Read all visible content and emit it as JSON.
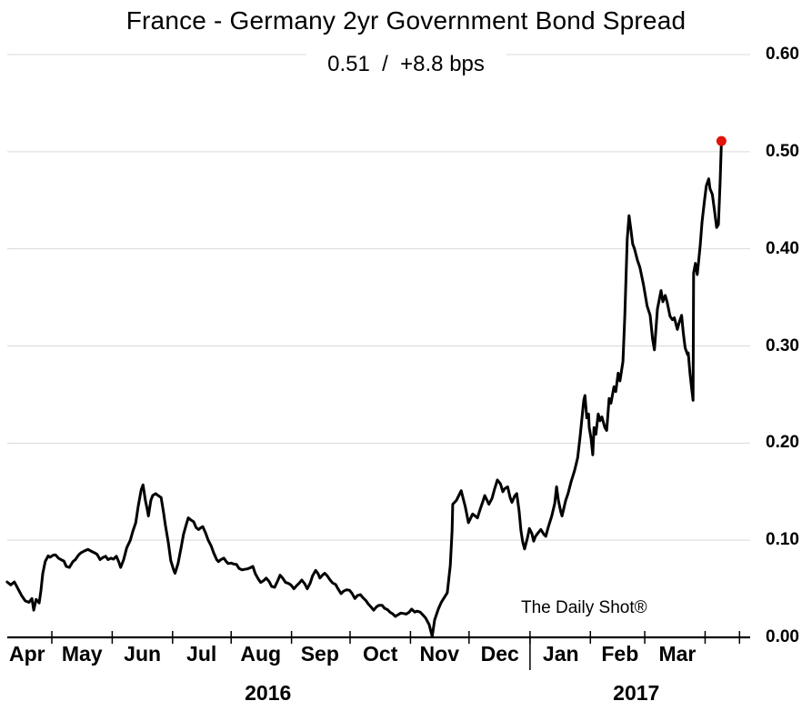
{
  "colors": {
    "background": "#ffffff",
    "gridline": "#d9d9d9",
    "axis": "#000000",
    "line": "#000000",
    "marker": "#e3120b",
    "text": "#000000"
  },
  "chart_data": {
    "type": "line",
    "title": "France - Germany 2yr Government Bond Spread",
    "subtitle": "0.51  /  +8.8 bps",
    "last_value": "0.51",
    "last_change": "+8.8 bps",
    "watermark": "The Daily Shot®",
    "x_axis": {
      "t_unit": "months since 2016-04-01 (t=1 is May 1, 2016 tick)",
      "range_t": [
        0.26,
        12.57
      ],
      "ticks_t": [
        1.0,
        2.0,
        3.0,
        3.97,
        4.97,
        5.94,
        6.94,
        7.91,
        8.92,
        9.92,
        10.82,
        11.82,
        12.39
      ],
      "month_labels": [
        {
          "label": "Apr",
          "t": 0.59
        },
        {
          "label": "May",
          "t": 1.5
        },
        {
          "label": "Jun",
          "t": 2.5
        },
        {
          "label": "Jul",
          "t": 3.48
        },
        {
          "label": "Aug",
          "t": 4.46
        },
        {
          "label": "Sep",
          "t": 5.44
        },
        {
          "label": "Oct",
          "t": 6.44
        },
        {
          "label": "Nov",
          "t": 7.42
        },
        {
          "label": "Dec",
          "t": 8.42
        },
        {
          "label": "Jan",
          "t": 9.43
        },
        {
          "label": "Feb",
          "t": 10.41
        },
        {
          "label": "Mar",
          "t": 11.36
        }
      ],
      "year_labels": [
        {
          "label": "2016",
          "t": 4.58
        },
        {
          "label": "2017",
          "t": 10.68
        }
      ],
      "year_separator_t": 8.92
    },
    "y_axis": {
      "min": 0,
      "max": 0.6,
      "tick_step": 0.1,
      "labels": [
        "0.00",
        "0.10",
        "0.20",
        "0.30",
        "0.40",
        "0.50",
        "0.60"
      ],
      "side": "right",
      "grid": true
    },
    "series": [
      {
        "name": "France - Germany 2yr spread",
        "color": "#000000",
        "points": [
          [
            0.26,
            0.057
          ],
          [
            0.32,
            0.054
          ],
          [
            0.38,
            0.057
          ],
          [
            0.44,
            0.05
          ],
          [
            0.5,
            0.043
          ],
          [
            0.56,
            0.0375
          ],
          [
            0.62,
            0.036
          ],
          [
            0.67,
            0.04
          ],
          [
            0.7,
            0.028
          ],
          [
            0.74,
            0.039
          ],
          [
            0.79,
            0.0355
          ],
          [
            0.82,
            0.048
          ],
          [
            0.85,
            0.0655
          ],
          [
            0.89,
            0.078
          ],
          [
            0.94,
            0.084
          ],
          [
            0.97,
            0.0825
          ],
          [
            1.02,
            0.0845
          ],
          [
            1.06,
            0.085
          ],
          [
            1.11,
            0.0815
          ],
          [
            1.15,
            0.08
          ],
          [
            1.2,
            0.0785
          ],
          [
            1.24,
            0.073
          ],
          [
            1.29,
            0.072
          ],
          [
            1.35,
            0.078
          ],
          [
            1.39,
            0.08
          ],
          [
            1.44,
            0.0845
          ],
          [
            1.48,
            0.087
          ],
          [
            1.54,
            0.089
          ],
          [
            1.6,
            0.0905
          ],
          [
            1.66,
            0.0885
          ],
          [
            1.71,
            0.087
          ],
          [
            1.75,
            0.0855
          ],
          [
            1.8,
            0.08
          ],
          [
            1.84,
            0.082
          ],
          [
            1.89,
            0.0835
          ],
          [
            1.93,
            0.08
          ],
          [
            1.98,
            0.0815
          ],
          [
            2.02,
            0.0805
          ],
          [
            2.07,
            0.0835
          ],
          [
            2.11,
            0.0775
          ],
          [
            2.14,
            0.072
          ],
          [
            2.19,
            0.08
          ],
          [
            2.24,
            0.092
          ],
          [
            2.3,
            0.1
          ],
          [
            2.34,
            0.109
          ],
          [
            2.39,
            0.118
          ],
          [
            2.43,
            0.135
          ],
          [
            2.48,
            0.152
          ],
          [
            2.51,
            0.157
          ],
          [
            2.55,
            0.141
          ],
          [
            2.58,
            0.132
          ],
          [
            2.6,
            0.125
          ],
          [
            2.64,
            0.141
          ],
          [
            2.67,
            0.146
          ],
          [
            2.72,
            0.148
          ],
          [
            2.76,
            0.146
          ],
          [
            2.81,
            0.144
          ],
          [
            2.85,
            0.129
          ],
          [
            2.88,
            0.116
          ],
          [
            2.93,
            0.097
          ],
          [
            2.97,
            0.079
          ],
          [
            3.02,
            0.069
          ],
          [
            3.04,
            0.066
          ],
          [
            3.09,
            0.076
          ],
          [
            3.14,
            0.092
          ],
          [
            3.18,
            0.106
          ],
          [
            3.23,
            0.117
          ],
          [
            3.26,
            0.123
          ],
          [
            3.3,
            0.121
          ],
          [
            3.35,
            0.119
          ],
          [
            3.39,
            0.113
          ],
          [
            3.43,
            0.111
          ],
          [
            3.47,
            0.113
          ],
          [
            3.5,
            0.114
          ],
          [
            3.55,
            0.107
          ],
          [
            3.59,
            0.1
          ],
          [
            3.64,
            0.094
          ],
          [
            3.68,
            0.087
          ],
          [
            3.73,
            0.08
          ],
          [
            3.76,
            0.078
          ],
          [
            3.8,
            0.08
          ],
          [
            3.85,
            0.0815
          ],
          [
            3.89,
            0.078
          ],
          [
            3.92,
            0.076
          ],
          [
            3.97,
            0.0765
          ],
          [
            4.01,
            0.0755
          ],
          [
            4.06,
            0.075
          ],
          [
            4.1,
            0.071
          ],
          [
            4.15,
            0.0695
          ],
          [
            4.19,
            0.07
          ],
          [
            4.24,
            0.0705
          ],
          [
            4.28,
            0.0715
          ],
          [
            4.33,
            0.073
          ],
          [
            4.37,
            0.0655
          ],
          [
            4.42,
            0.06
          ],
          [
            4.46,
            0.0565
          ],
          [
            4.51,
            0.0585
          ],
          [
            4.55,
            0.061
          ],
          [
            4.6,
            0.0575
          ],
          [
            4.64,
            0.0525
          ],
          [
            4.69,
            0.0515
          ],
          [
            4.74,
            0.058
          ],
          [
            4.78,
            0.064
          ],
          [
            4.83,
            0.0605
          ],
          [
            4.87,
            0.0565
          ],
          [
            4.92,
            0.0555
          ],
          [
            4.96,
            0.054
          ],
          [
            5.01,
            0.05
          ],
          [
            5.05,
            0.053
          ],
          [
            5.1,
            0.056
          ],
          [
            5.14,
            0.059
          ],
          [
            5.19,
            0.055
          ],
          [
            5.23,
            0.05
          ],
          [
            5.28,
            0.056
          ],
          [
            5.32,
            0.0635
          ],
          [
            5.37,
            0.069
          ],
          [
            5.41,
            0.0655
          ],
          [
            5.44,
            0.061
          ],
          [
            5.49,
            0.0645
          ],
          [
            5.52,
            0.066
          ],
          [
            5.56,
            0.0635
          ],
          [
            5.61,
            0.059
          ],
          [
            5.65,
            0.056
          ],
          [
            5.7,
            0.0545
          ],
          [
            5.74,
            0.05
          ],
          [
            5.79,
            0.045
          ],
          [
            5.83,
            0.0475
          ],
          [
            5.88,
            0.049
          ],
          [
            5.93,
            0.0485
          ],
          [
            5.97,
            0.0455
          ],
          [
            6.02,
            0.04
          ],
          [
            6.06,
            0.043
          ],
          [
            6.11,
            0.044
          ],
          [
            6.15,
            0.041
          ],
          [
            6.2,
            0.038
          ],
          [
            6.24,
            0.0345
          ],
          [
            6.29,
            0.031
          ],
          [
            6.33,
            0.028
          ],
          [
            6.38,
            0.0315
          ],
          [
            6.42,
            0.033
          ],
          [
            6.47,
            0.033
          ],
          [
            6.51,
            0.03
          ],
          [
            6.56,
            0.0285
          ],
          [
            6.6,
            0.026
          ],
          [
            6.65,
            0.024
          ],
          [
            6.69,
            0.0215
          ],
          [
            6.74,
            0.0235
          ],
          [
            6.78,
            0.025
          ],
          [
            6.83,
            0.0245
          ],
          [
            6.87,
            0.024
          ],
          [
            6.92,
            0.026
          ],
          [
            6.96,
            0.029
          ],
          [
            7.01,
            0.026
          ],
          [
            7.05,
            0.027
          ],
          [
            7.1,
            0.026
          ],
          [
            7.14,
            0.0235
          ],
          [
            7.19,
            0.02
          ],
          [
            7.25,
            0.013
          ],
          [
            7.3,
            0.001
          ],
          [
            7.34,
            0.018
          ],
          [
            7.4,
            0.029
          ],
          [
            7.45,
            0.036
          ],
          [
            7.49,
            0.04
          ],
          [
            7.55,
            0.046
          ],
          [
            7.6,
            0.074
          ],
          [
            7.63,
            0.11
          ],
          [
            7.64,
            0.137
          ],
          [
            7.7,
            0.141
          ],
          [
            7.78,
            0.151
          ],
          [
            7.85,
            0.134
          ],
          [
            7.9,
            0.118
          ],
          [
            7.97,
            0.127
          ],
          [
            8.05,
            0.123
          ],
          [
            8.09,
            0.131
          ],
          [
            8.14,
            0.14
          ],
          [
            8.17,
            0.146
          ],
          [
            8.21,
            0.141
          ],
          [
            8.24,
            0.137
          ],
          [
            8.29,
            0.143
          ],
          [
            8.33,
            0.152
          ],
          [
            8.38,
            0.162
          ],
          [
            8.43,
            0.158
          ],
          [
            8.47,
            0.15
          ],
          [
            8.5,
            0.153
          ],
          [
            8.55,
            0.155
          ],
          [
            8.59,
            0.144
          ],
          [
            8.62,
            0.139
          ],
          [
            8.67,
            0.146
          ],
          [
            8.7,
            0.148
          ],
          [
            8.74,
            0.13
          ],
          [
            8.77,
            0.11
          ],
          [
            8.8,
            0.098
          ],
          [
            8.83,
            0.091
          ],
          [
            8.88,
            0.103
          ],
          [
            8.91,
            0.112
          ],
          [
            8.95,
            0.107
          ],
          [
            8.98,
            0.099
          ],
          [
            9.01,
            0.104
          ],
          [
            9.06,
            0.108
          ],
          [
            9.1,
            0.111
          ],
          [
            9.15,
            0.106
          ],
          [
            9.18,
            0.104
          ],
          [
            9.22,
            0.113
          ],
          [
            9.28,
            0.125
          ],
          [
            9.33,
            0.138
          ],
          [
            9.36,
            0.155
          ],
          [
            9.39,
            0.141
          ],
          [
            9.43,
            0.129
          ],
          [
            9.45,
            0.125
          ],
          [
            9.51,
            0.141
          ],
          [
            9.55,
            0.148
          ],
          [
            9.6,
            0.16
          ],
          [
            9.66,
            0.172
          ],
          [
            9.71,
            0.185
          ],
          [
            9.75,
            0.207
          ],
          [
            9.81,
            0.244
          ],
          [
            9.83,
            0.249
          ],
          [
            9.86,
            0.226
          ],
          [
            9.89,
            0.23
          ],
          [
            9.9,
            0.216
          ],
          [
            9.93,
            0.205
          ],
          [
            9.96,
            0.188
          ],
          [
            9.98,
            0.216
          ],
          [
            10.01,
            0.209
          ],
          [
            10.05,
            0.23
          ],
          [
            10.08,
            0.223
          ],
          [
            10.11,
            0.227
          ],
          [
            10.16,
            0.216
          ],
          [
            10.19,
            0.213
          ],
          [
            10.23,
            0.246
          ],
          [
            10.26,
            0.241
          ],
          [
            10.31,
            0.258
          ],
          [
            10.34,
            0.253
          ],
          [
            10.38,
            0.272
          ],
          [
            10.41,
            0.264
          ],
          [
            10.46,
            0.284
          ],
          [
            10.49,
            0.33
          ],
          [
            10.53,
            0.41
          ],
          [
            10.56,
            0.434
          ],
          [
            10.59,
            0.42
          ],
          [
            10.62,
            0.405
          ],
          [
            10.65,
            0.4
          ],
          [
            10.7,
            0.388
          ],
          [
            10.74,
            0.381
          ],
          [
            10.8,
            0.363
          ],
          [
            10.86,
            0.341
          ],
          [
            10.91,
            0.3315
          ],
          [
            10.95,
            0.307
          ],
          [
            10.98,
            0.296
          ],
          [
            11.03,
            0.338
          ],
          [
            11.09,
            0.357
          ],
          [
            11.12,
            0.3455
          ],
          [
            11.16,
            0.352
          ],
          [
            11.19,
            0.3455
          ],
          [
            11.24,
            0.3305
          ],
          [
            11.28,
            0.327
          ],
          [
            11.31,
            0.329
          ],
          [
            11.36,
            0.317
          ],
          [
            11.39,
            0.324
          ],
          [
            11.43,
            0.3315
          ],
          [
            11.46,
            0.313
          ],
          [
            11.49,
            0.298
          ],
          [
            11.53,
            0.291
          ],
          [
            11.54,
            0.293
          ],
          [
            11.57,
            0.272
          ],
          [
            11.59,
            0.26
          ],
          [
            11.62,
            0.244
          ],
          [
            11.63,
            0.375
          ],
          [
            11.66,
            0.385
          ],
          [
            11.69,
            0.3735
          ],
          [
            11.71,
            0.385
          ],
          [
            11.74,
            0.404
          ],
          [
            11.77,
            0.428
          ],
          [
            11.81,
            0.45
          ],
          [
            11.84,
            0.465
          ],
          [
            11.88,
            0.472
          ],
          [
            11.9,
            0.462
          ],
          [
            11.94,
            0.456
          ],
          [
            11.98,
            0.437
          ],
          [
            12.01,
            0.422
          ],
          [
            12.04,
            0.425
          ],
          [
            12.07,
            0.47
          ],
          [
            12.09,
            0.511
          ]
        ]
      }
    ],
    "end_marker": {
      "t": 12.09,
      "value": 0.511,
      "color": "#e3120b"
    }
  }
}
